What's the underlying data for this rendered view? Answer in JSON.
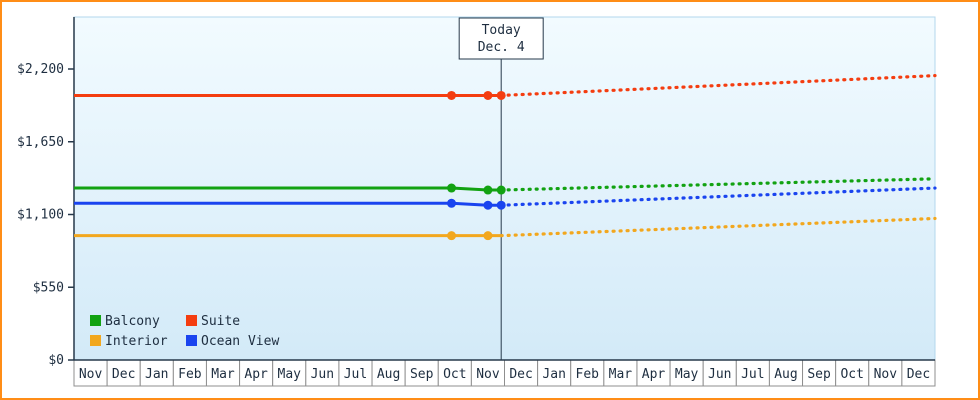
{
  "chart": {
    "today_box": {
      "line1": "Today",
      "line2": "Dec. 4"
    },
    "legend": [
      {
        "label": "Balcony",
        "color": "#12a212"
      },
      {
        "label": "Suite",
        "color": "#f43d10"
      },
      {
        "label": "Interior",
        "color": "#f2a71e"
      },
      {
        "label": "Ocean View",
        "color": "#1a44ef"
      }
    ],
    "colors": {
      "frame_border": "#ff8d17",
      "axis": "#26384a",
      "plot_bg_top": "#f2fbff",
      "plot_bg_bottom": "#d3eaf8"
    }
  },
  "chart_data": {
    "type": "line",
    "title": "",
    "xlabel": "",
    "ylabel": "",
    "grid": false,
    "legend_position": "bottom-left-inside",
    "x_axis": {
      "unit": "month",
      "tick_labels": [
        "Nov",
        "Dec",
        "Jan",
        "Feb",
        "Mar",
        "Apr",
        "May",
        "Jun",
        "Jul",
        "Aug",
        "Sep",
        "Oct",
        "Nov",
        "Dec",
        "Jan",
        "Feb",
        "Mar",
        "Apr",
        "May",
        "Jun",
        "Jul",
        "Aug",
        "Sep",
        "Oct",
        "Nov",
        "Dec"
      ]
    },
    "y_axis": {
      "tick_values": [
        0,
        550,
        1100,
        1650,
        2200
      ],
      "tick_labels": [
        "$0",
        "$550",
        "$1,100",
        "$1,650",
        "$2,200"
      ],
      "ylim": [
        0,
        2200
      ]
    },
    "today_x": 12.9,
    "today_label": "Today Dec. 4",
    "series": [
      {
        "name": "Balcony",
        "color": "#12a212",
        "style_past": "solid",
        "style_forecast": "dotted",
        "solid_points": [
          [
            0,
            1300
          ],
          [
            11.4,
            1300
          ],
          [
            12.5,
            1285
          ],
          [
            12.9,
            1285
          ]
        ],
        "forecast_points": [
          [
            12.9,
            1285
          ],
          [
            26,
            1370
          ]
        ],
        "marker_points": [
          [
            11.4,
            1300
          ],
          [
            12.5,
            1285
          ],
          [
            12.9,
            1285
          ]
        ]
      },
      {
        "name": "Suite",
        "color": "#f43d10",
        "style_past": "solid",
        "style_forecast": "dotted",
        "solid_points": [
          [
            0,
            2000
          ],
          [
            11.4,
            2000
          ],
          [
            12.5,
            2000
          ],
          [
            12.9,
            2000
          ]
        ],
        "forecast_points": [
          [
            12.9,
            2000
          ],
          [
            26,
            2150
          ]
        ],
        "marker_points": [
          [
            11.4,
            2000
          ],
          [
            12.5,
            2000
          ],
          [
            12.9,
            2000
          ]
        ]
      },
      {
        "name": "Interior",
        "color": "#f2a71e",
        "style_past": "solid",
        "style_forecast": "dotted",
        "solid_points": [
          [
            0,
            940
          ],
          [
            12.9,
            940
          ]
        ],
        "forecast_points": [
          [
            12.9,
            940
          ],
          [
            26,
            1070
          ]
        ],
        "marker_points": [
          [
            11.4,
            940
          ],
          [
            12.5,
            940
          ]
        ]
      },
      {
        "name": "Ocean View",
        "color": "#1a44ef",
        "style_past": "solid",
        "style_forecast": "dotted",
        "solid_points": [
          [
            0,
            1185
          ],
          [
            11.4,
            1185
          ],
          [
            12.5,
            1170
          ],
          [
            12.9,
            1170
          ]
        ],
        "forecast_points": [
          [
            12.9,
            1170
          ],
          [
            26,
            1300
          ]
        ],
        "marker_points": [
          [
            11.4,
            1185
          ],
          [
            12.5,
            1170
          ],
          [
            12.9,
            1170
          ]
        ]
      }
    ]
  }
}
